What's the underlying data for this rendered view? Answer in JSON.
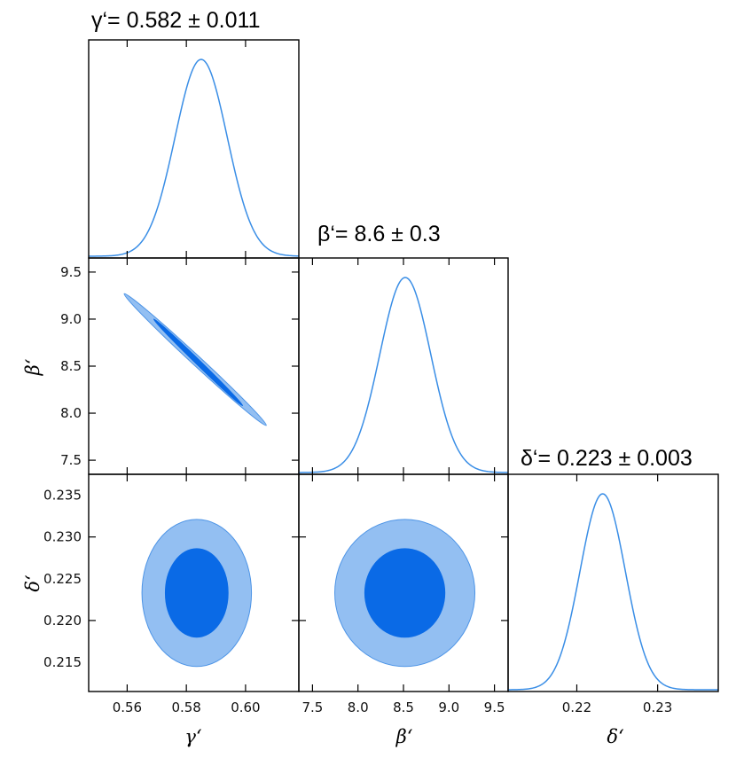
{
  "colors": {
    "line": "#3a8ee6",
    "inner_contour": "#0a6ae6",
    "outer_contour": "#93bff2",
    "outer_edge": "#4d94e6",
    "frame": "#000000"
  },
  "titles": {
    "gamma": "γ‘= 0.582 ± 0.011",
    "beta": "β‘= 8.6 ± 0.3",
    "delta": "δ‘= 0.223 ± 0.003"
  },
  "axis_labels": {
    "gamma": "γ‘",
    "beta": "β‘",
    "delta": "δ‘"
  },
  "chart_data": {
    "type": "corner",
    "parameters": [
      {
        "key": "gamma",
        "label": "γ‘",
        "title": "γ‘= 0.582 ± 0.011",
        "mean": 0.582,
        "sigma": 0.011,
        "range": [
          0.547,
          0.618
        ],
        "ticks": [
          0.56,
          0.58,
          0.6
        ],
        "tick_labels": [
          "0.56",
          "0.58",
          "0.60"
        ]
      },
      {
        "key": "beta",
        "label": "β‘",
        "title": "β‘= 8.6 ± 0.3",
        "mean": 8.6,
        "sigma": 0.3,
        "range": [
          7.35,
          9.65
        ],
        "ticks": [
          7.5,
          8.0,
          8.5,
          9.0,
          9.5
        ],
        "tick_labels": [
          "7.5",
          "8.0",
          "8.5",
          "9.0",
          "9.5"
        ]
      },
      {
        "key": "delta",
        "label": "δ‘",
        "title": "δ‘= 0.223 ± 0.003",
        "mean": 0.223,
        "sigma": 0.003,
        "range": [
          0.2115,
          0.2375
        ],
        "ticks": [
          0.22,
          0.23
        ],
        "tick_labels": [
          "0.22",
          "0.23"
        ]
      }
    ],
    "marginals": [
      {
        "param": "gamma",
        "peak": 0.585,
        "sigma": 0.0088
      },
      {
        "param": "beta",
        "peak": 8.52,
        "sigma": 0.28
      },
      {
        "param": "delta",
        "peak": 0.2232,
        "sigma": 0.0028
      }
    ],
    "left_axis_ticks": {
      "beta": [
        "9.5",
        "9.0",
        "8.5",
        "8.0",
        "7.5"
      ],
      "delta": [
        "0.235",
        "0.230",
        "0.225",
        "0.220",
        "0.215"
      ]
    },
    "joint": [
      {
        "x": "gamma",
        "y": "beta",
        "shape": "thin-ellipse",
        "correlation": "negative",
        "outer_endpoints": [
          [
            0.559,
            9.27
          ],
          [
            0.607,
            7.87
          ]
        ],
        "inner_endpoints": [
          [
            0.569,
            9.0
          ],
          [
            0.599,
            8.08
          ]
        ],
        "outer_half_width": 0.0016,
        "inner_half_width": 0.0008
      },
      {
        "x": "gamma",
        "y": "delta",
        "shape": "ellipse",
        "center": [
          0.5835,
          0.2233
        ],
        "outer_radii": [
          0.0185,
          0.0088
        ],
        "inner_radii": [
          0.0106,
          0.0053
        ]
      },
      {
        "x": "beta",
        "y": "delta",
        "shape": "ellipse",
        "center": [
          8.515,
          0.2233
        ],
        "outer_radii": [
          0.77,
          0.0088
        ],
        "inner_radii": [
          0.44,
          0.0053
        ]
      }
    ]
  }
}
